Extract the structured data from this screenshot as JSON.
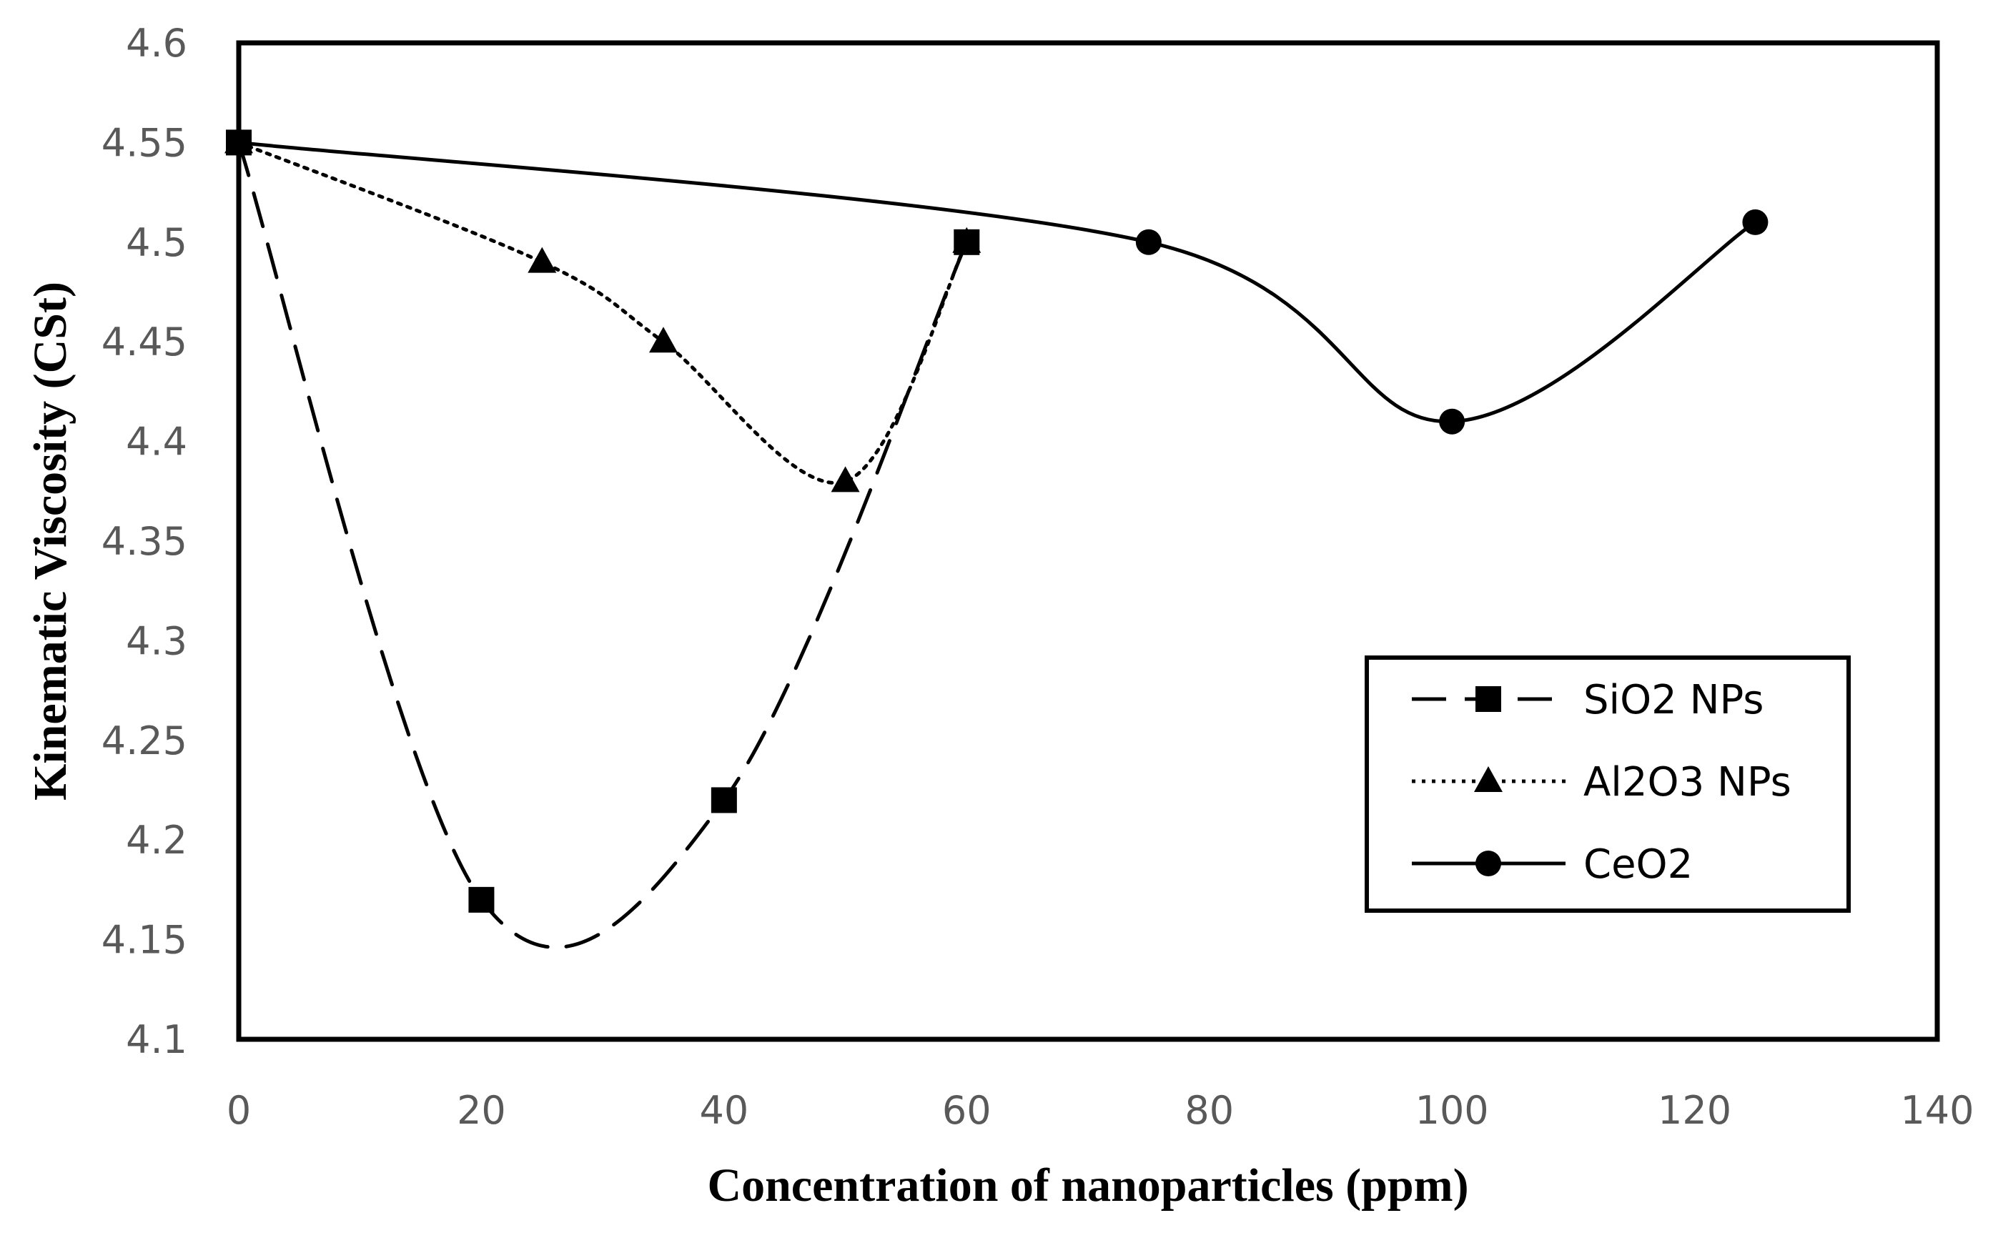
{
  "chart_data": {
    "type": "line",
    "title": "",
    "xlabel": "Concentration of nanoparticles (ppm)",
    "ylabel": "Kinematic Viscosity (CSt)",
    "xlim": [
      0,
      140
    ],
    "ylim": [
      4.1,
      4.6
    ],
    "x_ticks": [
      "0",
      "20",
      "40",
      "60",
      "80",
      "100",
      "120",
      "140"
    ],
    "y_ticks": [
      "4.1",
      "4.15",
      "4.2",
      "4.25",
      "4.3",
      "4.35",
      "4.4",
      "4.45",
      "4.5",
      "4.55",
      "4.6"
    ],
    "grid": false,
    "legend_position": "bottom-right",
    "series": [
      {
        "name": "SiO2 NPs",
        "style": "long-dash",
        "marker": "square",
        "x": [
          0,
          20,
          40,
          60
        ],
        "y": [
          4.55,
          4.17,
          4.22,
          4.5
        ]
      },
      {
        "name": "Al2O3 NPs",
        "style": "dotted",
        "marker": "triangle",
        "x": [
          0,
          25,
          35,
          50,
          60
        ],
        "y": [
          4.55,
          4.49,
          4.45,
          4.38,
          4.5
        ]
      },
      {
        "name": "CeO2",
        "style": "solid",
        "marker": "circle",
        "x": [
          0,
          75,
          100,
          125
        ],
        "y": [
          4.55,
          4.5,
          4.41,
          4.51
        ]
      }
    ]
  }
}
